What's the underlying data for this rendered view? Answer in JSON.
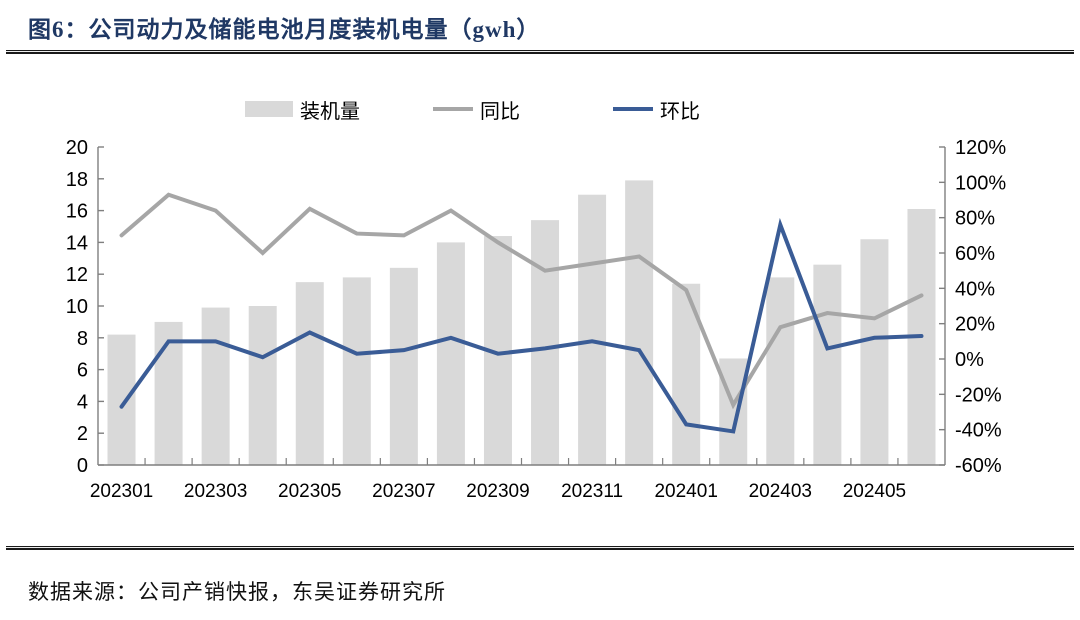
{
  "header": {
    "title": "图6：公司动力及储能电池月度装机电量（gwh）"
  },
  "legend": [
    {
      "label": "装机量",
      "marker": "bar"
    },
    {
      "label": "同比",
      "marker": "line"
    },
    {
      "label": "环比",
      "marker": "line"
    }
  ],
  "footer": {
    "source": "数据来源：公司产销快报，东吴证券研究所"
  },
  "colors": {
    "title": "#1f3864",
    "bar": "#d9d9d9",
    "yoy_line": "#a6a6a6",
    "mom_line": "#3a5c96",
    "axis": "#7f7f7f",
    "tick_text": "#000000"
  },
  "chart_data": {
    "type": "bar+line combo",
    "title": "公司动力及储能电池月度装机电量（gwh）",
    "categories": [
      "202301",
      "202302",
      "202303",
      "202304",
      "202305",
      "202306",
      "202307",
      "202308",
      "202309",
      "202310",
      "202311",
      "202312",
      "202401",
      "202402",
      "202403",
      "202404",
      "202405",
      "202406"
    ],
    "x_tick_labels": [
      "202301",
      "202303",
      "202305",
      "202307",
      "202309",
      "202311",
      "202401",
      "202403",
      "202405"
    ],
    "series": [
      {
        "name": "装机量",
        "type": "bar",
        "axis": "left",
        "unit": "gwh",
        "values": [
          8.2,
          9.0,
          9.9,
          10.0,
          11.5,
          11.8,
          12.4,
          14.0,
          14.4,
          15.4,
          17.0,
          17.9,
          11.4,
          6.7,
          11.8,
          12.6,
          14.2,
          16.1
        ]
      },
      {
        "name": "同比",
        "type": "line",
        "axis": "right",
        "unit": "%",
        "values": [
          70,
          93,
          84,
          60,
          85,
          71,
          70,
          84,
          66,
          50,
          54,
          58,
          39,
          -26,
          18,
          26,
          23,
          36
        ]
      },
      {
        "name": "环比",
        "type": "line",
        "axis": "right",
        "unit": "%",
        "values": [
          -27,
          10,
          10,
          1,
          15,
          3,
          5,
          12,
          3,
          6,
          10,
          5,
          -37,
          -41,
          76,
          6,
          12,
          13
        ]
      }
    ],
    "left_axis": {
      "min": 0,
      "max": 20,
      "step": 2,
      "tick_labels": [
        "0",
        "2",
        "4",
        "6",
        "8",
        "10",
        "12",
        "14",
        "16",
        "18",
        "20"
      ]
    },
    "right_axis": {
      "min": -60,
      "max": 120,
      "step": 20,
      "format": "percent",
      "tick_labels": [
        "-60%",
        "-40%",
        "-20%",
        "0%",
        "20%",
        "40%",
        "60%",
        "80%",
        "100%",
        "120%"
      ]
    },
    "grid": false,
    "legend_position": "top"
  }
}
